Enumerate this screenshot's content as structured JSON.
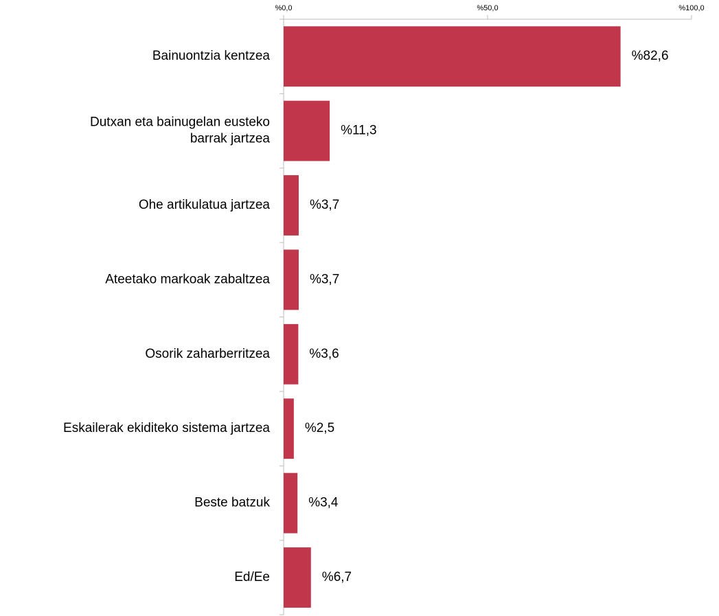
{
  "chart_data": {
    "type": "bar",
    "orientation": "horizontal",
    "categories": [
      "Bainuontzia kentzea",
      "Dutxan eta bainugelan eusteko\nbarrak jartzea",
      "Ohe artikulatua jartzea",
      "Ateetako markoak zabaltzea",
      "Osorik zaharberritzea",
      "Eskailerak ekiditeko sistema jartzea",
      "Beste batzuk",
      "Ed/Ee"
    ],
    "values": [
      82.6,
      11.3,
      3.7,
      3.7,
      3.6,
      2.5,
      3.4,
      6.7
    ],
    "value_labels": [
      "%82,6",
      "%11,3",
      "%3,7",
      "%3,7",
      "%3,6",
      "%2,5",
      "%3,4",
      "%6,7"
    ],
    "color": "#c0374b",
    "xlim": [
      0,
      100
    ],
    "xticks": [
      {
        "value": 0,
        "label": "%0,0"
      },
      {
        "value": 50,
        "label": "%50,0"
      },
      {
        "value": 100,
        "label": "%100,0"
      }
    ]
  }
}
